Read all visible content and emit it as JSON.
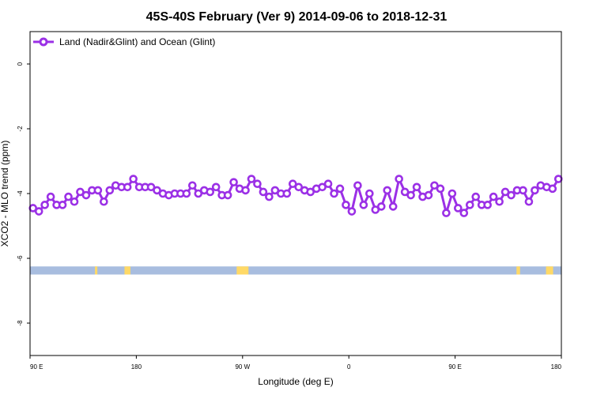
{
  "chart_data": {
    "type": "line",
    "title": "45S-40S February (Ver 9)   2014-09-06 to 2018-12-31",
    "xlabel": "Longitude (deg E)",
    "ylabel": "XCO2 - MLO trend (ppm)",
    "x_ticks": [
      {
        "value": 90,
        "label": "90 E"
      },
      {
        "value": 180,
        "label": "180"
      },
      {
        "value": 270,
        "label": "90 W"
      },
      {
        "value": 360,
        "label": "0"
      },
      {
        "value": 450,
        "label": "90 E"
      },
      {
        "value": 540,
        "label": "180"
      }
    ],
    "xlim": [
      90,
      540
    ],
    "y_ticks": [
      0,
      -2,
      -4,
      -6,
      -8
    ],
    "ylim": [
      -9,
      1
    ],
    "grid": false,
    "legend_position": "top-left",
    "series": [
      {
        "name": "Land (Nadir&Glint) and Ocean (Glint)",
        "color": "#9b30e6",
        "x": [
          92.5,
          97.5,
          102.5,
          107.5,
          112.5,
          117.5,
          122.5,
          127.5,
          132.5,
          137.5,
          142.5,
          147.5,
          152.5,
          157.5,
          162.5,
          167.5,
          172.5,
          177.5,
          182.5,
          187.5,
          192.5,
          197.5,
          202.5,
          207.5,
          212.5,
          217.5,
          222.5,
          227.5,
          232.5,
          237.5,
          242.5,
          247.5,
          252.5,
          257.5,
          262.5,
          267.5,
          272.5,
          277.5,
          282.5,
          287.5,
          292.5,
          297.5,
          302.5,
          307.5,
          312.5,
          317.5,
          322.5,
          327.5,
          332.5,
          337.5,
          342.5,
          347.5,
          352.5,
          357.5,
          362.5,
          367.5,
          372.5,
          377.5,
          382.5,
          387.5,
          392.5,
          397.5,
          402.5,
          407.5,
          412.5,
          417.5,
          422.5,
          427.5,
          432.5,
          437.5,
          442.5,
          447.5,
          452.5,
          457.5,
          462.5,
          467.5,
          472.5,
          477.5,
          482.5,
          487.5,
          492.5,
          497.5,
          502.5,
          507.5,
          512.5,
          517.5,
          522.5,
          527.5,
          532.5,
          537.5
        ],
        "y": [
          -4.45,
          -4.55,
          -4.35,
          -4.1,
          -4.35,
          -4.35,
          -4.1,
          -4.25,
          -3.95,
          -4.05,
          -3.9,
          -3.9,
          -4.25,
          -3.9,
          -3.75,
          -3.8,
          -3.8,
          -3.55,
          -3.8,
          -3.8,
          -3.8,
          -3.9,
          -4.0,
          -4.05,
          -4.0,
          -4.0,
          -4.0,
          -3.75,
          -4.0,
          -3.9,
          -3.95,
          -3.8,
          -4.05,
          -4.05,
          -3.65,
          -3.85,
          -3.9,
          -3.55,
          -3.7,
          -3.95,
          -4.1,
          -3.9,
          -4.0,
          -4.0,
          -3.7,
          -3.8,
          -3.9,
          -3.95,
          -3.85,
          -3.8,
          -3.7,
          -4.0,
          -3.85,
          -4.35,
          -4.55,
          -3.75,
          -4.35,
          -4.0,
          -4.5,
          -4.4,
          -3.9,
          -4.4,
          -3.55,
          -3.95,
          -4.05,
          -3.8,
          -4.1,
          -4.05,
          -3.75,
          -3.85,
          -4.6,
          -4.0,
          -4.45,
          -4.6,
          -4.35,
          -4.1,
          -4.35,
          -4.35,
          -4.1,
          -4.25,
          -3.95,
          -4.05,
          -3.9,
          -3.9,
          -4.25,
          -3.9,
          -3.75,
          -3.8,
          -3.85,
          -3.55
        ]
      }
    ],
    "land_band": {
      "y_top": -6.25,
      "y_bottom": -6.5,
      "ocean_color": "#a8bddf",
      "land_color": "#ffd966",
      "land_segments": [
        [
          145,
          147
        ],
        [
          170,
          173
        ],
        [
          173,
          175
        ],
        [
          265,
          275
        ],
        [
          502,
          505
        ],
        [
          527,
          531
        ],
        [
          531,
          533
        ]
      ]
    }
  }
}
